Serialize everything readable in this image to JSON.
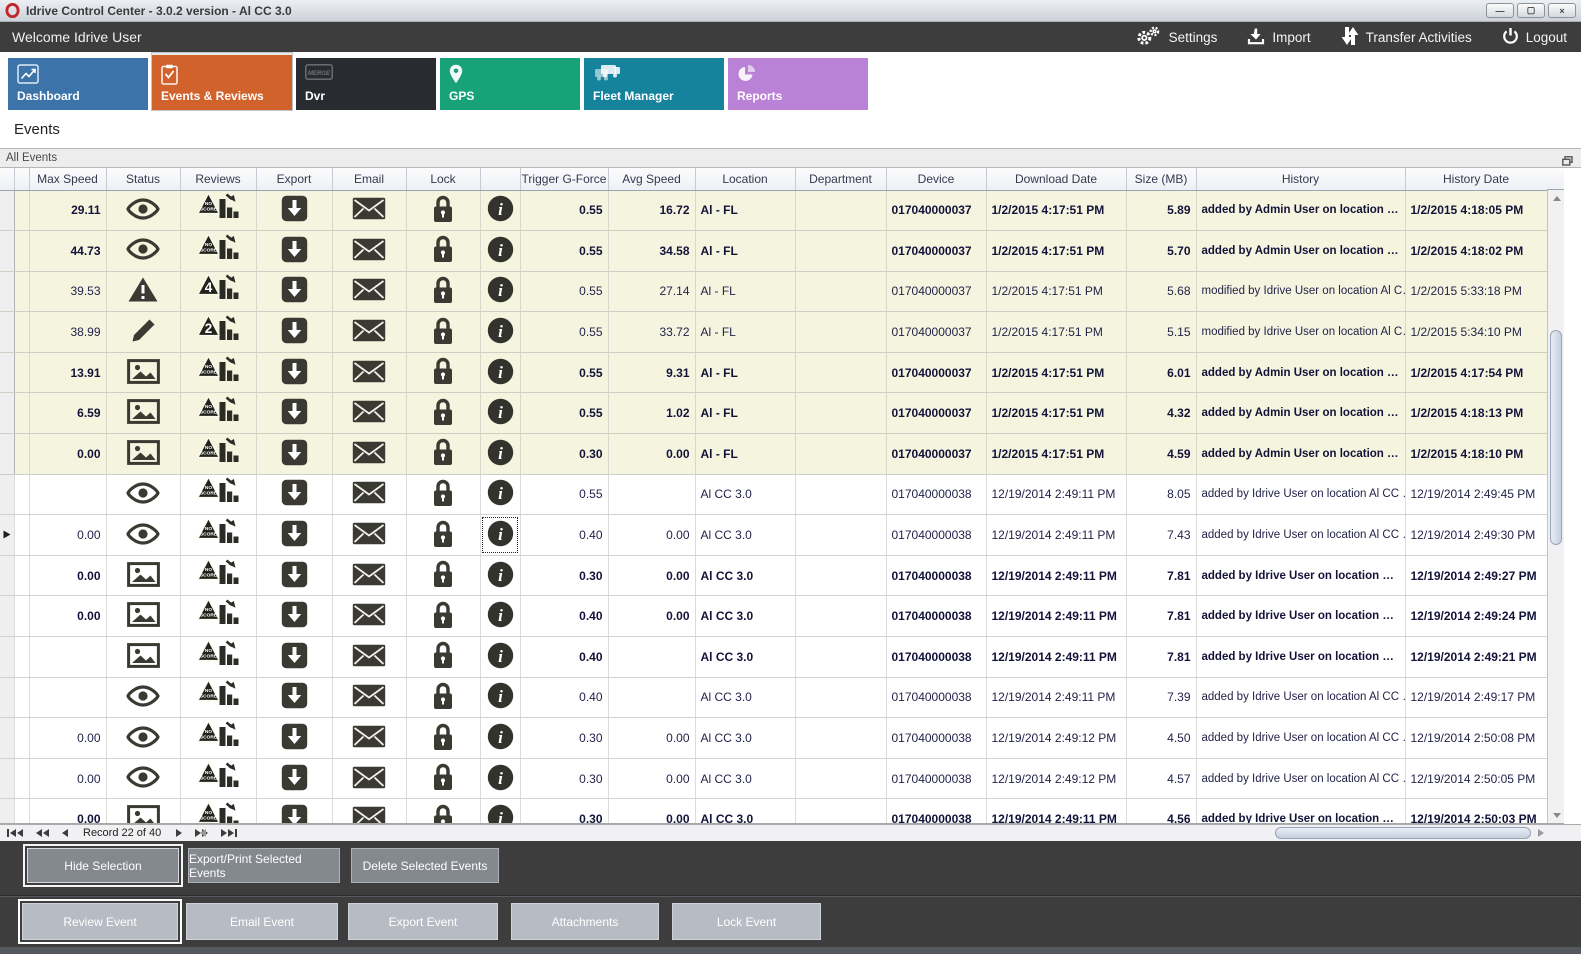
{
  "window": {
    "title": "Idrive Control Center - 3.0.2 version - Al CC 3.0",
    "controls": {
      "minimize": "—",
      "maximize": "▢",
      "close": "×"
    }
  },
  "menubar": {
    "welcome": "Welcome Idrive User",
    "actions": [
      {
        "label": "Settings",
        "icon": "gears-icon"
      },
      {
        "label": "Import",
        "icon": "import-icon"
      },
      {
        "label": "Transfer Activities",
        "icon": "transfer-icon"
      },
      {
        "label": "Logout",
        "icon": "power-icon"
      }
    ]
  },
  "tabs": [
    {
      "label": "Dashboard",
      "color": "#3c73a8",
      "icon": "line-chart-icon",
      "selected": false
    },
    {
      "label": "Events & Reviews",
      "color": "#d2622b",
      "icon": "clipboard-check-icon",
      "selected": true
    },
    {
      "label": "Dvr",
      "color": "#282c31",
      "icon": "merge-box-icon",
      "selected": false
    },
    {
      "label": "GPS",
      "color": "#18a278",
      "icon": "map-pin-icon",
      "selected": false
    },
    {
      "label": "Fleet Manager",
      "color": "#15839b",
      "icon": "trucks-icon",
      "selected": false
    },
    {
      "label": "Reports",
      "color": "#ba82d6",
      "icon": "pie-chart-icon",
      "selected": false
    }
  ],
  "page": {
    "heading": "Events",
    "group_title": "All Events"
  },
  "table": {
    "columns": [
      "",
      "",
      "Max Speed",
      "Status",
      "Reviews",
      "Export",
      "Email",
      "Lock",
      "",
      "Trigger G-Force",
      "Avg Speed",
      "Location",
      "Department",
      "Device",
      "Download Date",
      "Size (MB)",
      "History",
      "History Date"
    ],
    "rows": [
      {
        "frag": "2",
        "max": "29.11",
        "status": "eye",
        "badge": "NO SCORE",
        "tgf": "0.55",
        "avg": "16.72",
        "loc": "Al - FL",
        "dept": "",
        "dev": "017040000037",
        "dl": "1/2/2015 4:17:51 PM",
        "size": "5.89",
        "hist": "added by Admin User on location …",
        "hdate": "1/2/2015 4:18:05 PM",
        "bold": true,
        "beige": true,
        "current": false
      },
      {
        "frag": "6",
        "max": "44.73",
        "status": "eye",
        "badge": "NO SCORE",
        "tgf": "0.55",
        "avg": "34.58",
        "loc": "Al - FL",
        "dept": "",
        "dev": "017040000037",
        "dl": "1/2/2015 4:17:51 PM",
        "size": "5.70",
        "hist": "added by Admin User on location …",
        "hdate": "1/2/2015 4:18:02 PM",
        "bold": true,
        "beige": true,
        "current": false
      },
      {
        "frag": "4",
        "max": "39.53",
        "status": "warning",
        "badge": "4",
        "tgf": "0.55",
        "avg": "27.14",
        "loc": "Al - FL",
        "dept": "",
        "dev": "017040000037",
        "dl": "1/2/2015 4:17:51 PM",
        "size": "5.68",
        "hist": "modified by Idrive User on location Al C…",
        "hdate": "1/2/2015 5:33:18 PM",
        "bold": false,
        "beige": true,
        "current": false
      },
      {
        "frag": "9",
        "max": "38.99",
        "status": "pencil",
        "badge": "2",
        "tgf": "0.55",
        "avg": "33.72",
        "loc": "Al - FL",
        "dept": "",
        "dev": "017040000037",
        "dl": "1/2/2015 4:17:51 PM",
        "size": "5.15",
        "hist": "modified by Idrive User on location Al C…",
        "hdate": "1/2/2015 5:34:10 PM",
        "bold": false,
        "beige": true,
        "current": false
      },
      {
        "frag": "6",
        "max": "13.91",
        "status": "image",
        "badge": "NO SCORE",
        "tgf": "0.55",
        "avg": "9.31",
        "loc": "Al - FL",
        "dept": "",
        "dev": "017040000037",
        "dl": "1/2/2015 4:17:51 PM",
        "size": "6.01",
        "hist": "added by Admin User on location …",
        "hdate": "1/2/2015 4:17:54 PM",
        "bold": true,
        "beige": true,
        "current": false
      },
      {
        "frag": "0",
        "max": "6.59",
        "status": "image",
        "badge": "NO SCORE",
        "tgf": "0.55",
        "avg": "1.02",
        "loc": "Al - FL",
        "dept": "",
        "dev": "017040000037",
        "dl": "1/2/2015 4:17:51 PM",
        "size": "4.32",
        "hist": "added by Admin User on location …",
        "hdate": "1/2/2015 4:18:13 PM",
        "bold": true,
        "beige": true,
        "current": false
      },
      {
        "frag": "0",
        "max": "0.00",
        "status": "image",
        "badge": "NO SCORE",
        "tgf": "0.30",
        "avg": "0.00",
        "loc": "Al - FL",
        "dept": "",
        "dev": "017040000037",
        "dl": "1/2/2015 4:17:51 PM",
        "size": "4.59",
        "hist": "added by Admin User on location …",
        "hdate": "1/2/2015 4:18:10 PM",
        "bold": true,
        "beige": true,
        "current": false
      },
      {
        "frag": "6",
        "max": "",
        "status": "eye",
        "badge": "NO SCORE",
        "tgf": "0.55",
        "avg": "",
        "loc": "Al CC 3.0",
        "dept": "",
        "dev": "017040000038",
        "dl": "12/19/2014 2:49:11 PM",
        "size": "8.05",
        "hist": "added by Idrive User on location Al CC …",
        "hdate": "12/19/2014 2:49:45 PM",
        "bold": false,
        "beige": false,
        "current": false
      },
      {
        "frag": "7",
        "max": "0.00",
        "status": "eye",
        "badge": "NO SCORE",
        "tgf": "0.40",
        "avg": "0.00",
        "loc": "Al CC 3.0",
        "dept": "",
        "dev": "017040000038",
        "dl": "12/19/2014 2:49:11 PM",
        "size": "7.43",
        "hist": "added by Idrive User on location Al CC …",
        "hdate": "12/19/2014 2:49:30 PM",
        "bold": false,
        "beige": false,
        "current": true
      },
      {
        "frag": "7",
        "max": "0.00",
        "status": "image",
        "badge": "NO SCORE",
        "tgf": "0.30",
        "avg": "0.00",
        "loc": "Al CC 3.0",
        "dept": "",
        "dev": "017040000038",
        "dl": "12/19/2014 2:49:11 PM",
        "size": "7.81",
        "hist": "added by Idrive User on location …",
        "hdate": "12/19/2014 2:49:27 PM",
        "bold": true,
        "beige": false,
        "current": false
      },
      {
        "frag": "6",
        "max": "0.00",
        "status": "image",
        "badge": "NO SCORE",
        "tgf": "0.40",
        "avg": "0.00",
        "loc": "Al CC 3.0",
        "dept": "",
        "dev": "017040000038",
        "dl": "12/19/2014 2:49:11 PM",
        "size": "7.81",
        "hist": "added by Idrive User on location …",
        "hdate": "12/19/2014 2:49:24 PM",
        "bold": true,
        "beige": false,
        "current": false
      },
      {
        "frag": "8",
        "max": "",
        "status": "image",
        "badge": "NO SCORE",
        "tgf": "0.40",
        "avg": "",
        "loc": "Al CC 3.0",
        "dept": "",
        "dev": "017040000038",
        "dl": "12/19/2014 2:49:11 PM",
        "size": "7.81",
        "hist": "added by Idrive User on location …",
        "hdate": "12/19/2014 2:49:21 PM",
        "bold": true,
        "beige": false,
        "current": false
      },
      {
        "frag": "6",
        "max": "",
        "status": "eye",
        "badge": "NO SCORE",
        "tgf": "0.40",
        "avg": "",
        "loc": "Al CC 3.0",
        "dept": "",
        "dev": "017040000038",
        "dl": "12/19/2014 2:49:11 PM",
        "size": "7.39",
        "hist": "added by Idrive User on location Al CC …",
        "hdate": "12/19/2014 2:49:17 PM",
        "bold": false,
        "beige": false,
        "current": false
      },
      {
        "frag": "0",
        "max": "0.00",
        "status": "eye",
        "badge": "NO SCORE",
        "tgf": "0.30",
        "avg": "0.00",
        "loc": "Al CC 3.0",
        "dept": "",
        "dev": "017040000038",
        "dl": "12/19/2014 2:49:12 PM",
        "size": "4.50",
        "hist": "added by Idrive User on location Al CC …",
        "hdate": "12/19/2014 2:50:08 PM",
        "bold": false,
        "beige": false,
        "current": false
      },
      {
        "frag": "8",
        "max": "0.00",
        "status": "eye",
        "badge": "NO SCORE",
        "tgf": "0.30",
        "avg": "0.00",
        "loc": "Al CC 3.0",
        "dept": "",
        "dev": "017040000038",
        "dl": "12/19/2014 2:49:12 PM",
        "size": "4.57",
        "hist": "added by Idrive User on location Al CC …",
        "hdate": "12/19/2014 2:50:05 PM",
        "bold": false,
        "beige": false,
        "current": false
      },
      {
        "frag": "0",
        "max": "0.00",
        "status": "image",
        "badge": "NO SCORE",
        "tgf": "0.30",
        "avg": "0.00",
        "loc": "Al CC 3.0",
        "dept": "",
        "dev": "017040000038",
        "dl": "12/19/2014 2:49:11 PM",
        "size": "4.56",
        "hist": "added by Idrive User on location …",
        "hdate": "12/19/2014 2:50:03 PM",
        "bold": true,
        "beige": false,
        "current": false
      }
    ]
  },
  "pager": {
    "record_text": "Record 22 of 40"
  },
  "footer": {
    "row1": [
      "Hide Selection",
      "Export/Print Selected Events",
      "Delete Selected  Events"
    ],
    "row2": [
      "Review Event",
      "Email Event",
      "Export Event",
      "Attachments",
      "Lock Event"
    ]
  },
  "colors": {
    "menubar": "#3d3d3d",
    "row_highlight": "#f4f4df",
    "selected_tab": "#d2622b",
    "logo_red": "#c2242b"
  }
}
